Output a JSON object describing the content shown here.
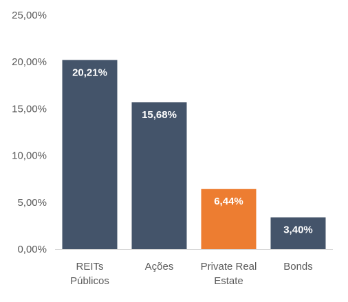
{
  "chart_data": {
    "type": "bar",
    "categories": [
      [
        "REITs",
        "Públicos"
      ],
      [
        "Ações"
      ],
      [
        "Private Real",
        "Estate"
      ],
      [
        "Bonds"
      ]
    ],
    "values": [
      20.21,
      15.68,
      6.44,
      3.4
    ],
    "data_labels": [
      "20,21%",
      "15,68%",
      "6,44%",
      "3,40%"
    ],
    "bar_colors": [
      "#44546a",
      "#44546a",
      "#ed7d31",
      "#44546a"
    ],
    "ylim": [
      0,
      25
    ],
    "yticks": [
      0,
      5,
      10,
      15,
      20,
      25
    ],
    "ytick_labels": [
      "0,00%",
      "5,00%",
      "10,00%",
      "15,00%",
      "20,00%",
      "25,00%"
    ],
    "grid": false,
    "legend": "none",
    "axis_color": "#d9d9d9"
  }
}
